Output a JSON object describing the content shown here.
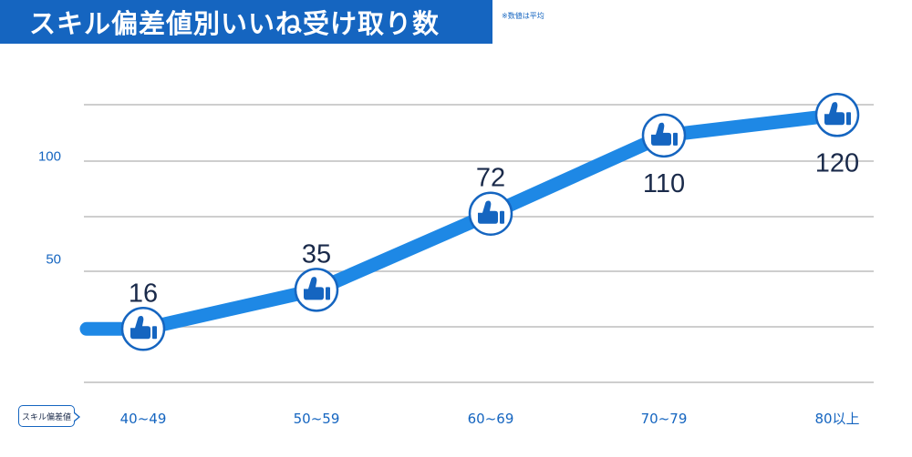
{
  "title": "スキル偏差値別いいね受け取り数",
  "note": "※数値は平均",
  "axis_badge": "スキル偏差値",
  "colors": {
    "banner": "#1565c0",
    "line": "#1e88e5",
    "marker": "#1565c0",
    "tick_text": "#1565c0",
    "label_text": "#1a2a4a"
  },
  "marker_icon": "thumbs-up-icon",
  "chart_data": {
    "type": "line",
    "categories": [
      "40~49",
      "50~59",
      "60~69",
      "70~79",
      "80以上"
    ],
    "values": [
      16,
      35,
      72,
      110,
      120
    ],
    "data_labels": [
      "16",
      "35",
      "72",
      "110",
      "120"
    ],
    "yticks": [
      50,
      100
    ],
    "ylim": [
      -10,
      125
    ],
    "grid": true,
    "legend": "none"
  }
}
